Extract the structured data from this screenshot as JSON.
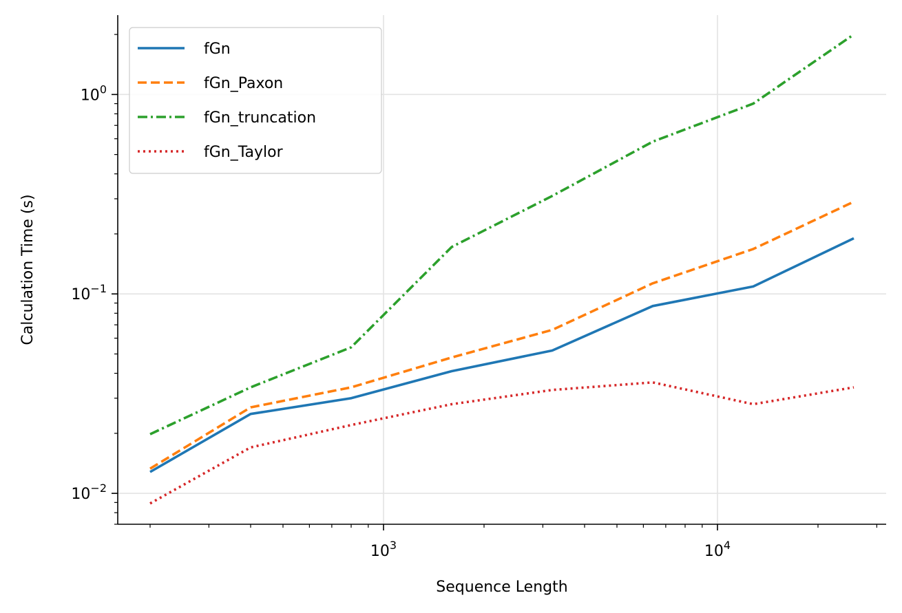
{
  "chart_data": {
    "type": "line",
    "xlabel": "Sequence Length",
    "ylabel": "Calculation Time (s)",
    "xscale": "log",
    "yscale": "log",
    "xlim": [
      160,
      32000
    ],
    "ylim": [
      0.007,
      2.5
    ],
    "grid": true,
    "legend_position": "top-left",
    "x_ticks": [
      {
        "value": 1000,
        "base": "10",
        "exp": "3"
      },
      {
        "value": 10000,
        "base": "10",
        "exp": "4"
      }
    ],
    "y_ticks": [
      {
        "value": 0.01,
        "base": "10",
        "exp": "−2"
      },
      {
        "value": 0.1,
        "base": "10",
        "exp": "−1"
      },
      {
        "value": 1,
        "base": "10",
        "exp": "0"
      }
    ],
    "x": [
      200,
      400,
      800,
      1600,
      3200,
      6400,
      12800,
      25600
    ],
    "series": [
      {
        "name": "fGn",
        "color": "#1f77b4",
        "dash": "solid",
        "values": [
          0.0128,
          0.025,
          0.03,
          0.041,
          0.052,
          0.087,
          0.109,
          0.19
        ]
      },
      {
        "name": "fGn_Paxon",
        "color": "#ff7f0e",
        "dash": "dashed",
        "values": [
          0.0133,
          0.027,
          0.034,
          0.048,
          0.066,
          0.113,
          0.168,
          0.29
        ]
      },
      {
        "name": "fGn_truncation",
        "color": "#2ca02c",
        "dash": "dashdot",
        "values": [
          0.0198,
          0.034,
          0.054,
          0.172,
          0.31,
          0.58,
          0.9,
          2.0
        ]
      },
      {
        "name": "fGn_Taylor",
        "color": "#d62728",
        "dash": "dotted",
        "values": [
          0.0089,
          0.017,
          0.022,
          0.028,
          0.033,
          0.036,
          0.028,
          0.034
        ]
      }
    ]
  }
}
